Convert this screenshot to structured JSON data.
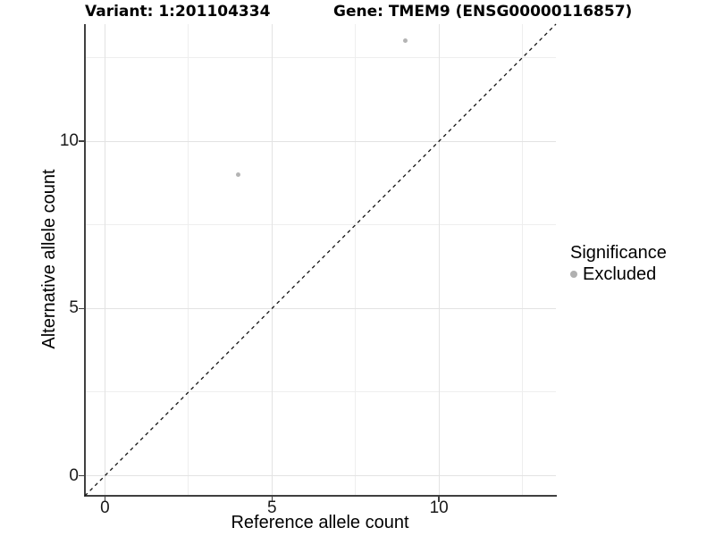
{
  "chart_data": {
    "type": "scatter",
    "titles": {
      "left": "Variant: 1:201104334",
      "right": "Gene: TMEM9 (ENSG00000116857)"
    },
    "xlabel": "Reference allele count",
    "ylabel": "Alternative allele count",
    "xlim": [
      -0.6,
      13.5
    ],
    "ylim": [
      -0.6,
      13.5
    ],
    "x_ticks": [
      0,
      5,
      10
    ],
    "y_ticks": [
      0,
      5,
      10
    ],
    "x_minor_ticks": [
      2.5,
      7.5,
      12.5
    ],
    "y_minor_ticks": [
      2.5,
      7.5,
      12.5
    ],
    "grid": "major+minor",
    "identity_line": {
      "style": "dashed",
      "equation": "y = x",
      "color": "#141414"
    },
    "series": [
      {
        "name": "Excluded",
        "color": "#b4b4b4",
        "points": [
          {
            "x": 4,
            "y": 9
          },
          {
            "x": 9,
            "y": 13
          }
        ]
      }
    ],
    "legend": {
      "title": "Significance",
      "position": "right",
      "items": [
        {
          "label": "Excluded",
          "color": "#b0b0b0"
        }
      ]
    }
  },
  "colors": {
    "background": "#ffffff",
    "axis_line": "#404040",
    "grid_major": "#e3e3e3",
    "grid_minor": "#eeeeee",
    "tick_label": "#1a1a1a",
    "point": "#b4b4b4",
    "dashed_line": "#141414"
  }
}
